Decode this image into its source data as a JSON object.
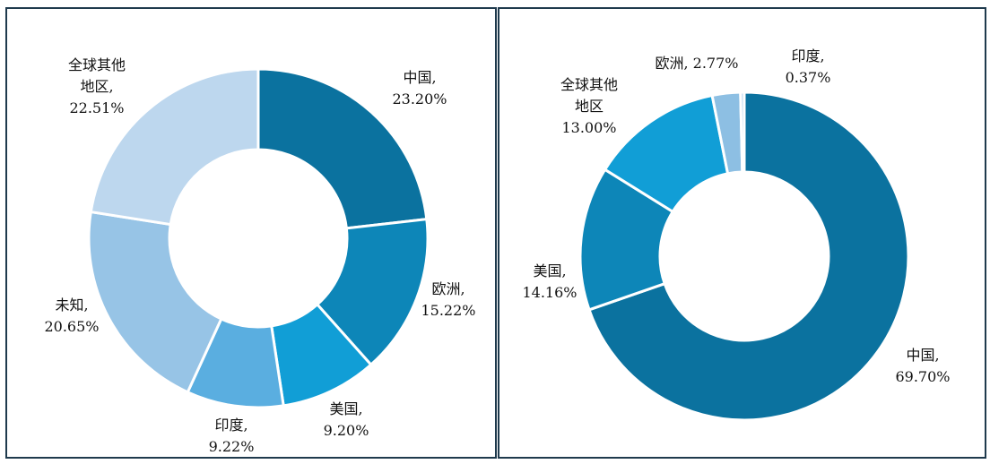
{
  "chart_data": [
    {
      "type": "donut",
      "colors": [
        "#0b729f",
        "#0d86b8",
        "#119ed6",
        "#5aaee0",
        "#97c4e6",
        "#bdd7ee"
      ],
      "slices": [
        {
          "label": "中国,",
          "value": 23.2,
          "value_text": "23.20%"
        },
        {
          "label": "欧洲,",
          "value": 15.22,
          "value_text": "15.22%"
        },
        {
          "label": "美国,",
          "value": 9.2,
          "value_text": "9.20%"
        },
        {
          "label": "印度,",
          "value": 9.22,
          "value_text": "9.22%"
        },
        {
          "label": "未知,",
          "value": 20.65,
          "value_text": "20.65%"
        },
        {
          "label": "全球其他地区,",
          "label_lines": [
            "全球其他",
            "地区,"
          ],
          "value": 22.51,
          "value_text": "22.51%"
        }
      ]
    },
    {
      "type": "donut",
      "colors": [
        "#0b729f",
        "#0d86b8",
        "#119ed6",
        "#8dbfe3",
        "#bdd7ee"
      ],
      "slices": [
        {
          "label": "中国,",
          "value": 69.7,
          "value_text": "69.70%"
        },
        {
          "label": "美国,",
          "value": 14.16,
          "value_text": "14.16%"
        },
        {
          "label": "全球其他地区,",
          "label_lines": [
            "全球其他",
            "地区"
          ],
          "value": 13.0,
          "value_text": "13.00%"
        },
        {
          "label": "欧洲,",
          "value": 2.77,
          "value_text": "2.77%"
        },
        {
          "label": "印度,",
          "value": 0.37,
          "value_text": "0.37%"
        }
      ]
    }
  ]
}
